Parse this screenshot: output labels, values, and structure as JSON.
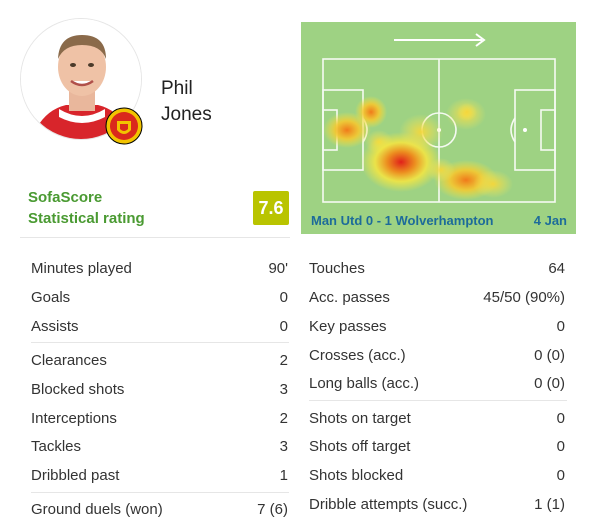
{
  "player": {
    "first_name": "Phil",
    "last_name": "Jones"
  },
  "rating": {
    "label_line1": "SofaScore",
    "label_line2": "Statistical rating",
    "value": "7.6",
    "badge_color": "#b9c400",
    "label_color": "#4a9a32"
  },
  "heatmap": {
    "match": "Man Utd 0 - 1 Wolverhampton",
    "date": "4 Jan",
    "direction_icon": "arrow-right-icon",
    "pitch_color": "#9ed283"
  },
  "stats_left": [
    [
      {
        "label": "Minutes played",
        "value": "90'"
      },
      {
        "label": "Goals",
        "value": "0"
      },
      {
        "label": "Assists",
        "value": "0"
      }
    ],
    [
      {
        "label": "Clearances",
        "value": "2"
      },
      {
        "label": "Blocked shots",
        "value": "3"
      },
      {
        "label": "Interceptions",
        "value": "2"
      },
      {
        "label": "Tackles",
        "value": "3"
      },
      {
        "label": "Dribbled past",
        "value": "1"
      }
    ],
    [
      {
        "label": "Ground duels (won)",
        "value": "7 (6)"
      }
    ]
  ],
  "stats_right": [
    [
      {
        "label": "Touches",
        "value": "64"
      },
      {
        "label": "Acc. passes",
        "value": "45/50 (90%)"
      },
      {
        "label": "Key passes",
        "value": "0"
      },
      {
        "label": "Crosses (acc.)",
        "value": "0 (0)"
      },
      {
        "label": "Long balls (acc.)",
        "value": "0 (0)"
      }
    ],
    [
      {
        "label": "Shots on target",
        "value": "0"
      },
      {
        "label": "Shots off target",
        "value": "0"
      },
      {
        "label": "Shots blocked",
        "value": "0"
      },
      {
        "label": "Dribble attempts (succ.)",
        "value": "1 (1)"
      }
    ]
  ]
}
